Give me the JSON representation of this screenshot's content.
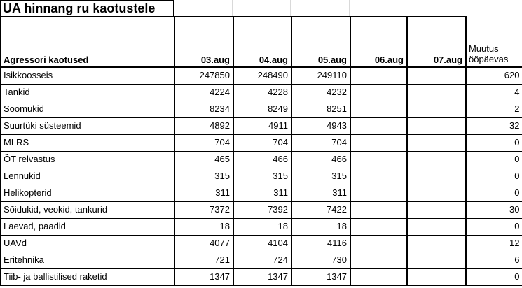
{
  "title": "UA hinnang ru kaotustele",
  "colors": {
    "text": "#000000",
    "border": "#000000",
    "gridline": "#d9d9d9",
    "background": "#ffffff"
  },
  "table": {
    "label_header": "Agressori kaotused",
    "date_headers": [
      "03.aug",
      "04.aug",
      "05.aug",
      "06.aug",
      "07.aug"
    ],
    "change_header": "Muutus ööpäevas",
    "rows": [
      {
        "label": "Isikkoosseis",
        "values": [
          "247850",
          "248490",
          "249110",
          "",
          ""
        ],
        "change": "620"
      },
      {
        "label": "Tankid",
        "values": [
          "4224",
          "4228",
          "4232",
          "",
          ""
        ],
        "change": "4"
      },
      {
        "label": "Soomukid",
        "values": [
          "8234",
          "8249",
          "8251",
          "",
          ""
        ],
        "change": "2"
      },
      {
        "label": "Suurtüki süsteemid",
        "values": [
          "4892",
          "4911",
          "4943",
          "",
          ""
        ],
        "change": "32"
      },
      {
        "label": "MLRS",
        "values": [
          "704",
          "704",
          "704",
          "",
          ""
        ],
        "change": "0"
      },
      {
        "label": "ÕT relvastus",
        "values": [
          "465",
          "466",
          "466",
          "",
          ""
        ],
        "change": "0"
      },
      {
        "label": "Lennukid",
        "values": [
          "315",
          "315",
          "315",
          "",
          ""
        ],
        "change": "0"
      },
      {
        "label": "Helikopterid",
        "values": [
          "311",
          "311",
          "311",
          "",
          ""
        ],
        "change": "0"
      },
      {
        "label": "Sõidukid, veokid, tankurid",
        "values": [
          "7372",
          "7392",
          "7422",
          "",
          ""
        ],
        "change": "30"
      },
      {
        "label": "Laevad, paadid",
        "values": [
          "18",
          "18",
          "18",
          "",
          ""
        ],
        "change": "0"
      },
      {
        "label": "UAVd",
        "values": [
          "4077",
          "4104",
          "4116",
          "",
          ""
        ],
        "change": "12"
      },
      {
        "label": "Eritehnika",
        "values": [
          "721",
          "724",
          "730",
          "",
          ""
        ],
        "change": "6"
      },
      {
        "label": "Tiib- ja ballistilised raketid",
        "values": [
          "1347",
          "1347",
          "1347",
          "",
          ""
        ],
        "change": "0"
      }
    ]
  }
}
